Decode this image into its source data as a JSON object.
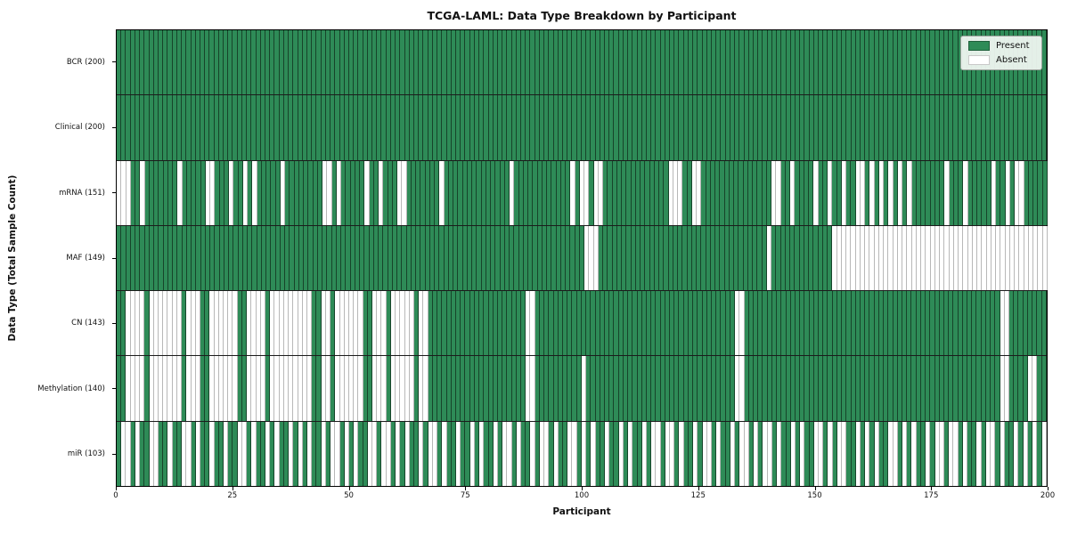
{
  "title": "TCGA-LAML: Data Type Breakdown by Participant",
  "xlabel": "Participant",
  "ylabel": "Data Type (Total Sample Count)",
  "colors": {
    "present": "#2e8b57",
    "absent": "#ffffff",
    "row_separator": "#1c1c1c",
    "legend_background": "#f2f7f3"
  },
  "legend": {
    "present_label": "Present",
    "absent_label": "Absent"
  },
  "chart_data": {
    "type": "heatmap",
    "title": "TCGA-LAML: Data Type Breakdown by Participant",
    "xlabel": "Participant",
    "ylabel": "Data Type (Total Sample Count)",
    "x_range": [
      0,
      200
    ],
    "x_ticks": [
      0,
      25,
      50,
      75,
      100,
      125,
      150,
      175,
      200
    ],
    "legend_entries": [
      "Present",
      "Absent"
    ],
    "legend_position": "upper right",
    "cell_encoding": "pattern strings: one char per participant (left=0), 1=Present, 0=Absent",
    "rows": [
      {
        "name": "BCR",
        "label": "BCR (200)",
        "present_count": 200,
        "pattern": "11111111111111111111111111111111111111111111111111111111111111111111111111111111111111111111111111111111111111111111111111111111111111111111111111111111111111111111111111111111111111111111111111111111"
      },
      {
        "name": "Clinical",
        "label": "Clinical (200)",
        "present_count": 200,
        "pattern": "11111111111111111111111111111111111111111111111111111111111111111111111111111111111111111111111111111111111111111111111111111111111111111111111111111111111111111111111111111111111111111111111111111111"
      },
      {
        "name": "mRNA",
        "label": "mRNA (151)",
        "present_count": 151,
        "pattern": "0001101111111011111001110110101111101111111100101111101101110011111110111111111111110111111111111010010011111111111111000110011111111111111100110111101101101100101010101011111110111011111011010011111"
      },
      {
        "name": "MAF",
        "label": "MAF (149)",
        "present_count": 149,
        "pattern": "1111111111111111111111111111111111111111111111111111111111111111111111111111111111111111111111111111000111111111111111111111111111111111111011111111111110000000000000000000000000000000000000000000000"
      },
      {
        "name": "CN",
        "label": "CN (143)",
        "present_count": 143,
        "pattern": "1100001000000010001100000011000010000000001100100000011000100000100111111111111111111111001111111111111111111111111111111111111111111001111111111111111111111111111111111111111111111111111111001111111111"
      },
      {
        "name": "Methylation",
        "label": "Methylation (140)",
        "present_count": 140,
        "pattern": "1100001000000010001100000011000010000000001100100000011000100000100111111111111111111111001111111111011111111111111111111111111111111001111111111111111111111111111111111111111111111111111111001111001111111111"
      },
      {
        "name": "miR",
        "label": "miR (103)",
        "present_count": 103,
        "pattern": "10010110011011001011011011001011010110101011010010101100100101011010010110110101101001011010010110010101101101011010010010110100101101001010010110101100101001101010110010101101001001011010010110101010"
      }
    ]
  }
}
